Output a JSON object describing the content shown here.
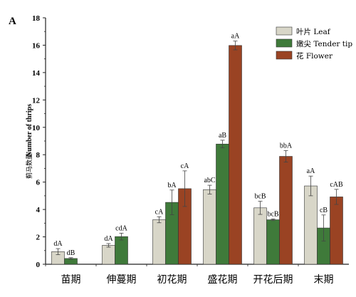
{
  "panel_label": "A",
  "chart_data": {
    "type": "bar",
    "categories": [
      "苗期",
      "伸蔓期",
      "初花期",
      "盛花期",
      "开花后期",
      "末期"
    ],
    "ylabel_cn": "蓟马数量",
    "ylabel": "Number of thrips",
    "xlabel": "",
    "ylim": [
      0,
      18
    ],
    "yticks": [
      "0",
      "2",
      "4",
      "6",
      "8",
      "10",
      "12",
      "14",
      "16",
      "18"
    ],
    "grid": false,
    "legend_position": "top-right",
    "series": [
      {
        "name": "叶片 Leaf",
        "color": "#d8d6c8",
        "values": [
          0.92,
          1.38,
          3.25,
          5.45,
          4.12,
          5.72
        ],
        "errors": [
          0.22,
          0.13,
          0.22,
          0.32,
          0.48,
          0.72
        ],
        "labels": [
          "dA",
          "dA",
          "cA",
          "abC",
          "bcB",
          "aA"
        ]
      },
      {
        "name": "嫩尖 Tender tip",
        "color": "#3f7a3a",
        "values": [
          0.42,
          2.02,
          4.52,
          8.78,
          3.25,
          2.65
        ],
        "errors": [
          0.06,
          0.25,
          0.9,
          0.28,
          0.06,
          0.95
        ],
        "labels": [
          "dB",
          "cdA",
          "bA",
          "aB",
          "bcB",
          "cB"
        ]
      },
      {
        "name": "花 Flower",
        "color": "#9a4323",
        "values": [
          null,
          null,
          5.52,
          15.98,
          7.88,
          4.92
        ],
        "errors": [
          null,
          null,
          1.3,
          0.32,
          0.42,
          0.55
        ],
        "labels": [
          "",
          "",
          "cA",
          "aA",
          "bbA",
          "cAB"
        ]
      }
    ]
  }
}
